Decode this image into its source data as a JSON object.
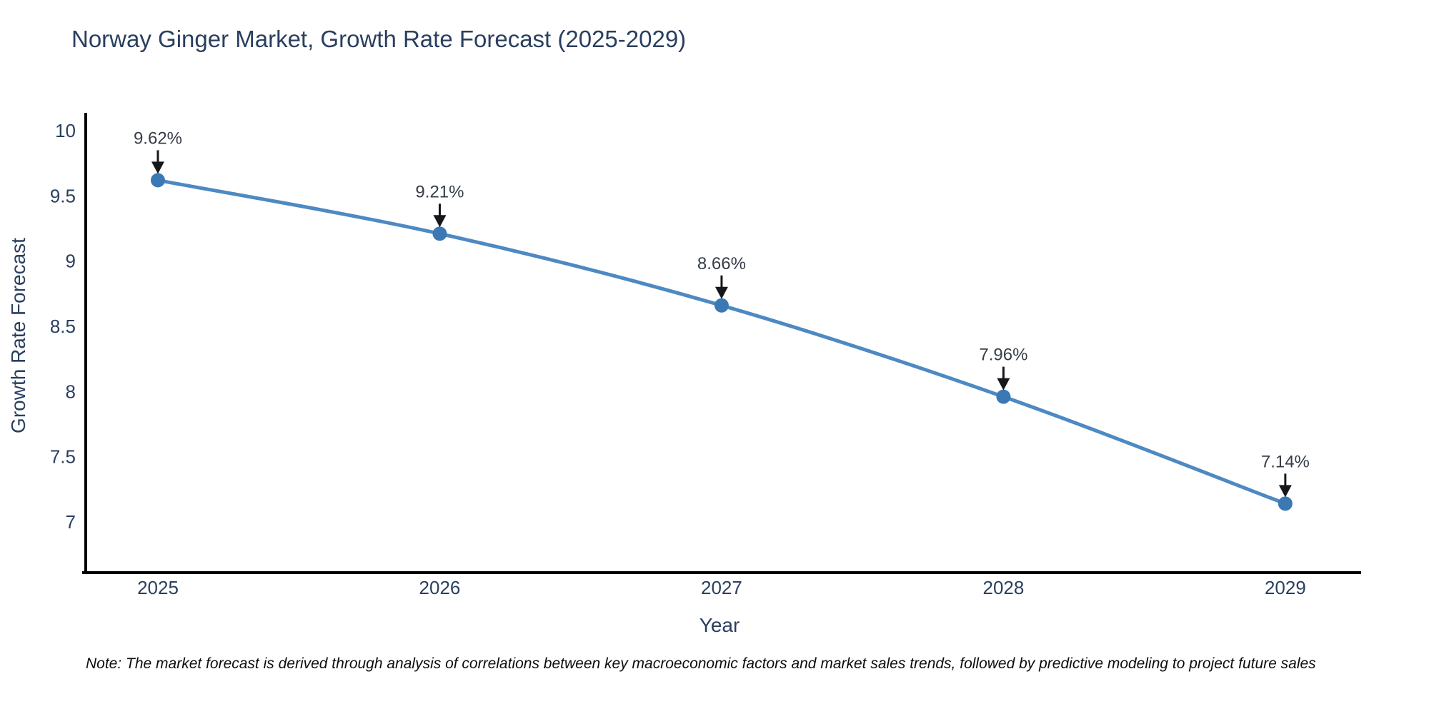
{
  "title": "Norway Ginger Market, Growth Rate Forecast (2025-2029)",
  "note": "Note: The market forecast is derived through analysis of correlations between key macroeconomic factors and market sales trends, followed by predictive modeling to project future sales",
  "chart_data": {
    "type": "line",
    "title": "Norway Ginger Market, Growth Rate Forecast (2025-2029)",
    "xlabel": "Year",
    "ylabel": "Growth Rate Forecast",
    "x": [
      2025,
      2026,
      2027,
      2028,
      2029
    ],
    "values": [
      9.62,
      9.21,
      8.66,
      7.96,
      7.14
    ],
    "point_labels": [
      "9.62%",
      "9.21%",
      "8.66%",
      "7.96%",
      "7.14%"
    ],
    "xtick_labels": [
      "2025",
      "2026",
      "2027",
      "2028",
      "2029"
    ],
    "yticks": [
      10,
      9.5,
      9,
      8.5,
      8,
      7.5,
      7
    ],
    "ytick_labels": [
      "10",
      "9.5",
      "9",
      "8.5",
      "8",
      "7.5",
      "7"
    ],
    "xlim": [
      2024.744,
      2029.269
    ],
    "ylim": [
      6.611,
      10.137
    ],
    "grid": false,
    "legend": false,
    "line_color": "#4d89c2",
    "marker_color": "#3b79b5",
    "axis_color": "#000000",
    "text_color": "#2a3f5f",
    "annotation_color": "#363d47",
    "arrow_color": "#15171a",
    "background_color": "#ffffff"
  }
}
